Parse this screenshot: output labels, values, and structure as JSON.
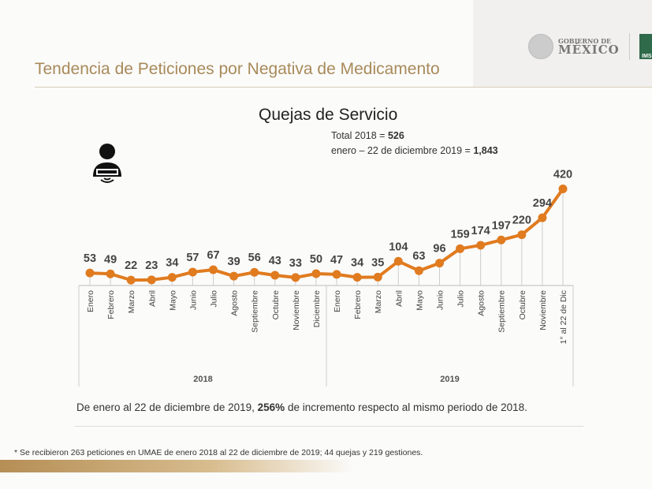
{
  "header": {
    "title": "Tendencia de Peticiones por Negativa de Medicamento",
    "logo_gob_line1": "GOBIERNO DE",
    "logo_gob_line2": "MÉXICO",
    "logo_imss": "IMSS"
  },
  "chart_data": {
    "type": "line",
    "title": "Quejas de Servicio",
    "subtitle_lines": [
      {
        "label": "Total 2018 = ",
        "value": "526"
      },
      {
        "label": "enero – 22 de diciembre 2019 = ",
        "value": "1,843"
      }
    ],
    "categories": [
      "Enero",
      "Febrero",
      "Marzo",
      "Abril",
      "Mayo",
      "Junio",
      "Julio",
      "Agosto",
      "Septiembre",
      "Octubre",
      "Noviembre",
      "Diciembre",
      "Enero",
      "Febrero",
      "Marzo",
      "Abril",
      "Mayo",
      "Junio",
      "Julio",
      "Agosto",
      "Septiembre",
      "Octubre",
      "Noviembre",
      "1° al 22 de Dic"
    ],
    "groups": [
      {
        "label": "2018",
        "count": 12
      },
      {
        "label": "2019",
        "count": 12
      }
    ],
    "values": [
      53,
      49,
      22,
      23,
      34,
      57,
      67,
      39,
      56,
      43,
      33,
      50,
      47,
      34,
      35,
      104,
      63,
      96,
      159,
      174,
      197,
      220,
      294,
      420
    ],
    "color": "#e07b1f",
    "ylim": [
      0,
      420
    ],
    "grid": false
  },
  "icon": "person-icon",
  "note": {
    "pre": "De enero al 22 de diciembre de 2019, ",
    "bold": "256%",
    "post": " de incremento respecto al mismo periodo de 2018."
  },
  "footnote": "* Se recibieron 263 peticiones en UMAE de enero 2018 al 22 de diciembre de 2019;  44 quejas y 219 gestiones."
}
